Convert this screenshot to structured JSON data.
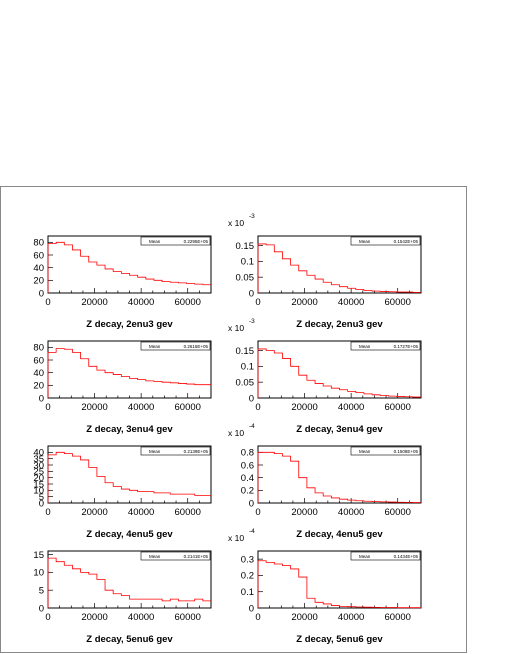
{
  "chart_data": [
    {
      "type": "histogram",
      "xlabel": "Z decay, 2enu3 gev",
      "stat_label": "Mean",
      "stat_value": "0.2295E+05",
      "scale": "",
      "xlim": [
        0,
        70000
      ],
      "ylim": [
        0,
        90
      ],
      "yticks": [
        0,
        20,
        40,
        60,
        80
      ],
      "ytick_labels": [
        "0",
        "20",
        "40",
        "60",
        "80"
      ],
      "xticks": [
        0,
        20000,
        40000,
        60000
      ],
      "xtick_labels": [
        "0",
        "20000",
        "40000",
        "60000"
      ],
      "color": "#ff0000",
      "x": [
        0,
        3500,
        7000,
        10500,
        14000,
        17500,
        21000,
        24500,
        28000,
        31500,
        35000,
        38500,
        42000,
        45500,
        49000,
        52500,
        56000,
        59500,
        63000,
        66500,
        70000
      ],
      "y": [
        78,
        80,
        76,
        68,
        58,
        49,
        44,
        38,
        34,
        31,
        28,
        25,
        22,
        20,
        18,
        17,
        16,
        15,
        14,
        13,
        13
      ]
    },
    {
      "type": "histogram",
      "xlabel": "Z decay, 2enu3 gev",
      "stat_label": "Mean",
      "stat_value": "0.1542E+05",
      "scale": "x 10",
      "scale_exp": "-3",
      "xlim": [
        0,
        70000
      ],
      "ylim": [
        0,
        0.18
      ],
      "yticks": [
        0,
        0.05,
        0.1,
        0.15
      ],
      "ytick_labels": [
        "0",
        "0.05",
        "0.1",
        "0.15"
      ],
      "xticks": [
        0,
        20000,
        40000,
        60000
      ],
      "xtick_labels": [
        "0",
        "20000",
        "40000",
        "60000"
      ],
      "color": "#ff0000",
      "x": [
        0,
        3500,
        7000,
        10500,
        14000,
        17500,
        21000,
        24500,
        28000,
        31500,
        35000,
        38500,
        42000,
        45500,
        49000,
        52500,
        56000,
        59500,
        63000,
        66500,
        70000
      ],
      "y": [
        0.155,
        0.152,
        0.13,
        0.108,
        0.088,
        0.07,
        0.056,
        0.044,
        0.034,
        0.026,
        0.02,
        0.015,
        0.011,
        0.008,
        0.006,
        0.005,
        0.004,
        0.003,
        0.003,
        0.002,
        0.002
      ]
    },
    {
      "type": "histogram",
      "xlabel": "Z decay, 3enu4 gev",
      "stat_label": "Mean",
      "stat_value": "0.2616E+05",
      "scale": "",
      "xlim": [
        0,
        70000
      ],
      "ylim": [
        0,
        90
      ],
      "yticks": [
        0,
        20,
        40,
        60,
        80
      ],
      "ytick_labels": [
        "0",
        "20",
        "40",
        "60",
        "80"
      ],
      "xticks": [
        0,
        20000,
        40000,
        60000
      ],
      "xtick_labels": [
        "0",
        "20000",
        "40000",
        "60000"
      ],
      "color": "#ff0000",
      "x": [
        0,
        3500,
        7000,
        10500,
        14000,
        17500,
        21000,
        24500,
        28000,
        31500,
        35000,
        38500,
        42000,
        45500,
        49000,
        52500,
        56000,
        59500,
        63000,
        66500,
        70000
      ],
      "y": [
        72,
        78,
        77,
        72,
        62,
        50,
        44,
        40,
        37,
        34,
        31,
        29,
        27,
        26,
        25,
        24,
        23,
        22,
        21,
        21,
        21
      ]
    },
    {
      "type": "histogram",
      "xlabel": "Z decay, 3enu4 gev",
      "stat_label": "Mean",
      "stat_value": "0.1727E+05",
      "scale": "x 10",
      "scale_exp": "-3",
      "xlim": [
        0,
        70000
      ],
      "ylim": [
        0,
        0.18
      ],
      "yticks": [
        0,
        0.05,
        0.1,
        0.15
      ],
      "ytick_labels": [
        "0",
        "0.05",
        "0.1",
        "0.15"
      ],
      "xticks": [
        0,
        20000,
        40000,
        60000
      ],
      "xtick_labels": [
        "0",
        "20000",
        "40000",
        "60000"
      ],
      "color": "#ff0000",
      "x": [
        0,
        3500,
        7000,
        10500,
        14000,
        17500,
        21000,
        24500,
        28000,
        31500,
        35000,
        38500,
        42000,
        45500,
        49000,
        52500,
        56000,
        59500,
        63000,
        66500,
        70000
      ],
      "y": [
        0.155,
        0.15,
        0.142,
        0.125,
        0.1,
        0.072,
        0.056,
        0.046,
        0.038,
        0.031,
        0.026,
        0.021,
        0.017,
        0.013,
        0.01,
        0.008,
        0.006,
        0.005,
        0.004,
        0.003,
        0.003
      ]
    },
    {
      "type": "histogram",
      "xlabel": "Z decay, 4enu5 gev",
      "stat_label": "Mean",
      "stat_value": "0.2139E+05",
      "scale": "",
      "xlim": [
        0,
        70000
      ],
      "ylim": [
        0,
        45
      ],
      "yticks": [
        0,
        5,
        10,
        15,
        20,
        25,
        30,
        35,
        40
      ],
      "ytick_labels": [
        "0",
        "5",
        "10",
        "15",
        "20",
        "25",
        "30",
        "35",
        "40"
      ],
      "xticks": [
        0,
        20000,
        40000,
        60000
      ],
      "xtick_labels": [
        "0",
        "20000",
        "40000",
        "60000"
      ],
      "color": "#ff0000",
      "x": [
        0,
        3500,
        7000,
        10500,
        14000,
        17500,
        21000,
        24500,
        28000,
        31500,
        35000,
        38500,
        42000,
        45500,
        49000,
        52500,
        56000,
        59500,
        63000,
        66500,
        70000
      ],
      "y": [
        38,
        40,
        39,
        37,
        34,
        28,
        21,
        16,
        13,
        11,
        10,
        9,
        9,
        8,
        8,
        7,
        7,
        7,
        6,
        6,
        6
      ]
    },
    {
      "type": "histogram",
      "xlabel": "Z decay, 4enu5 gev",
      "stat_label": "Mean",
      "stat_value": "0.1508E+05",
      "scale": "x 10",
      "scale_exp": "-4",
      "xlim": [
        0,
        70000
      ],
      "ylim": [
        0,
        0.9
      ],
      "yticks": [
        0,
        0.2,
        0.4,
        0.6,
        0.8
      ],
      "ytick_labels": [
        "0",
        "0.2",
        "0.4",
        "0.6",
        "0.8"
      ],
      "xticks": [
        0,
        20000,
        40000,
        60000
      ],
      "xtick_labels": [
        "0",
        "20000",
        "40000",
        "60000"
      ],
      "color": "#ff0000",
      "x": [
        0,
        3500,
        7000,
        10500,
        14000,
        17500,
        21000,
        24500,
        28000,
        31500,
        35000,
        38500,
        42000,
        45500,
        49000,
        52500,
        56000,
        59500,
        63000,
        66500,
        70000
      ],
      "y": [
        0.8,
        0.8,
        0.78,
        0.74,
        0.66,
        0.4,
        0.24,
        0.16,
        0.11,
        0.08,
        0.06,
        0.045,
        0.035,
        0.028,
        0.022,
        0.018,
        0.015,
        0.012,
        0.01,
        0.008,
        0.008
      ]
    },
    {
      "type": "histogram",
      "xlabel": "Z decay, 5enu6 gev",
      "stat_label": "Mean",
      "stat_value": "0.2141E+05",
      "scale": "",
      "xlim": [
        0,
        70000
      ],
      "ylim": [
        0,
        16
      ],
      "yticks": [
        0,
        5,
        10,
        15
      ],
      "ytick_labels": [
        "0",
        "5",
        "10",
        "15"
      ],
      "xticks": [
        0,
        20000,
        40000,
        60000
      ],
      "xtick_labels": [
        "0",
        "20000",
        "40000",
        "60000"
      ],
      "color": "#ff0000",
      "x": [
        0,
        3500,
        7000,
        10500,
        14000,
        17500,
        21000,
        24500,
        28000,
        31500,
        35000,
        38500,
        42000,
        45500,
        49000,
        52500,
        56000,
        59500,
        63000,
        66500,
        70000
      ],
      "y": [
        14,
        13,
        12,
        11,
        10,
        9.5,
        8,
        5,
        4,
        3.5,
        2.5,
        2.5,
        2.5,
        2.5,
        2,
        2.5,
        2,
        2,
        2.5,
        2,
        2
      ]
    },
    {
      "type": "histogram",
      "xlabel": "Z decay, 5enu6 gev",
      "stat_label": "Mean",
      "stat_value": "0.1434E+05",
      "scale": "x 10",
      "scale_exp": "-4",
      "xlim": [
        0,
        70000
      ],
      "ylim": [
        0,
        0.35
      ],
      "yticks": [
        0,
        0.1,
        0.2,
        0.3
      ],
      "ytick_labels": [
        "0",
        "0.1",
        "0.2",
        "0.3"
      ],
      "xticks": [
        0,
        20000,
        40000,
        60000
      ],
      "xtick_labels": [
        "0",
        "20000",
        "40000",
        "60000"
      ],
      "color": "#ff0000",
      "x": [
        0,
        3500,
        7000,
        10500,
        14000,
        17500,
        21000,
        24500,
        28000,
        31500,
        35000,
        38500,
        42000,
        45500,
        49000,
        52500,
        56000,
        59500,
        63000,
        66500,
        70000
      ],
      "y": [
        0.29,
        0.28,
        0.27,
        0.26,
        0.24,
        0.19,
        0.06,
        0.035,
        0.025,
        0.015,
        0.01,
        0.008,
        0.006,
        0.005,
        0.004,
        0.003,
        0.003,
        0.002,
        0.002,
        0.002,
        0.002
      ]
    }
  ]
}
